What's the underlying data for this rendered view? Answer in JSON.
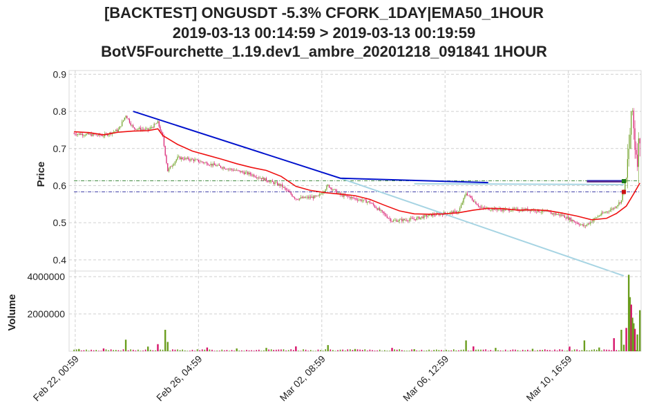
{
  "header": {
    "title_line1": "[BACKTEST] ONGUSDT -5.3% CFORK_1DAY|EMA50_1HOUR",
    "title_line2": "2019-03-13 00:14:59 > 2019-03-13 00:19:59",
    "title_line3": "BotV5Fourchette_1.19.dev1_ambre_20201218_091841 1HOUR"
  },
  "chart_data": [
    {
      "type": "candlestick",
      "ylabel": "Price",
      "xlabel": "",
      "x_range": [
        "2019-02-21 20:00",
        "2019-03-13 04:00"
      ],
      "ylim": [
        0.37,
        0.91
      ],
      "y_ticks": [
        "0.4",
        "0.5",
        "0.6",
        "0.7",
        "0.8",
        "0.9"
      ],
      "grid": true,
      "colors": {
        "up": "#6b9e1f",
        "down": "#d6136a",
        "ema": "#ee1111",
        "fork": "#0011cc",
        "fork_low": "#a6d4e3",
        "entry": "#006400",
        "stop": "#00008b",
        "trade": "#5a2a8a"
      },
      "ema_points": [
        [
          "2019-02-22 00:00",
          0.745
        ],
        [
          "2019-02-22 12:00",
          0.743
        ],
        [
          "2019-02-23 00:00",
          0.737
        ],
        [
          "2019-02-23 12:00",
          0.744
        ],
        [
          "2019-02-24 00:00",
          0.747
        ],
        [
          "2019-02-24 12:00",
          0.748
        ],
        [
          "2019-02-24 20:00",
          0.753
        ],
        [
          "2019-02-25 00:00",
          0.735
        ],
        [
          "2019-02-25 12:00",
          0.711
        ],
        [
          "2019-02-26 00:00",
          0.693
        ],
        [
          "2019-02-26 12:00",
          0.682
        ],
        [
          "2019-02-27 00:00",
          0.671
        ],
        [
          "2019-02-27 12:00",
          0.659
        ],
        [
          "2019-02-28 00:00",
          0.649
        ],
        [
          "2019-02-28 12:00",
          0.641
        ],
        [
          "2019-03-01 00:00",
          0.625
        ],
        [
          "2019-03-01 12:00",
          0.598
        ],
        [
          "2019-03-02 00:00",
          0.587
        ],
        [
          "2019-03-02 12:00",
          0.581
        ],
        [
          "2019-03-03 00:00",
          0.577
        ],
        [
          "2019-03-03 12:00",
          0.573
        ],
        [
          "2019-03-04 00:00",
          0.563
        ],
        [
          "2019-03-04 12:00",
          0.547
        ],
        [
          "2019-03-05 00:00",
          0.532
        ],
        [
          "2019-03-05 12:00",
          0.524
        ],
        [
          "2019-03-06 00:00",
          0.523
        ],
        [
          "2019-03-06 12:00",
          0.524
        ],
        [
          "2019-03-07 00:00",
          0.527
        ],
        [
          "2019-03-07 12:00",
          0.534
        ],
        [
          "2019-03-08 00:00",
          0.539
        ],
        [
          "2019-03-08 12:00",
          0.538
        ],
        [
          "2019-03-09 00:00",
          0.534
        ],
        [
          "2019-03-09 12:00",
          0.535
        ],
        [
          "2019-03-10 00:00",
          0.533
        ],
        [
          "2019-03-10 12:00",
          0.526
        ],
        [
          "2019-03-11 00:00",
          0.518
        ],
        [
          "2019-03-11 12:00",
          0.508
        ],
        [
          "2019-03-12 00:00",
          0.512
        ],
        [
          "2019-03-12 08:00",
          0.525
        ],
        [
          "2019-03-12 16:00",
          0.545
        ],
        [
          "2019-03-12 22:00",
          0.578
        ],
        [
          "2019-03-13 03:00",
          0.607
        ]
      ],
      "fork_line": [
        [
          "2019-02-24 00:00",
          0.8
        ],
        [
          "2019-03-03 00:00",
          0.62
        ],
        [
          "2019-03-08 00:00",
          0.608
        ]
      ],
      "fork_line_2": [
        [
          "2019-03-11 08:00",
          0.613
        ],
        [
          "2019-03-12 14:00",
          0.613
        ]
      ],
      "fork_low_line": [
        [
          "2019-03-03 00:00",
          0.62
        ],
        [
          "2019-03-12 14:00",
          0.357
        ]
      ],
      "fork_low_flat": [
        [
          "2019-03-05 12:00",
          0.605
        ],
        [
          "2019-03-12 14:00",
          0.603
        ]
      ],
      "trade_line": [
        [
          "2019-03-11 08:00",
          0.611
        ],
        [
          "2019-03-12 14:00",
          0.611
        ]
      ],
      "entry_level": 0.613,
      "stop_level": 0.583,
      "markers": [
        {
          "type": "buy",
          "x": "2019-03-12 14:00",
          "y": 0.612
        },
        {
          "type": "sell",
          "x": "2019-03-12 14:00",
          "y": 0.583
        }
      ],
      "price_path": [
        [
          "2019-02-22 00:00",
          0.74
        ],
        [
          "2019-02-23 00:00",
          0.735
        ],
        [
          "2019-02-23 12:00",
          0.75
        ],
        [
          "2019-02-23 18:00",
          0.79
        ],
        [
          "2019-02-24 00:00",
          0.755
        ],
        [
          "2019-02-24 12:00",
          0.75
        ],
        [
          "2019-02-24 20:00",
          0.77
        ],
        [
          "2019-02-25 00:00",
          0.73
        ],
        [
          "2019-02-25 04:00",
          0.64
        ],
        [
          "2019-02-25 12:00",
          0.675
        ],
        [
          "2019-02-26 00:00",
          0.67
        ],
        [
          "2019-02-27 00:00",
          0.65
        ],
        [
          "2019-02-28 00:00",
          0.63
        ],
        [
          "2019-03-01 00:00",
          0.6
        ],
        [
          "2019-03-01 12:00",
          0.565
        ],
        [
          "2019-03-02 06:00",
          0.57
        ],
        [
          "2019-03-02 14:00",
          0.6
        ],
        [
          "2019-03-03 00:00",
          0.575
        ],
        [
          "2019-03-04 00:00",
          0.555
        ],
        [
          "2019-03-04 18:00",
          0.505
        ],
        [
          "2019-03-05 12:00",
          0.51
        ],
        [
          "2019-03-06 00:00",
          0.52
        ],
        [
          "2019-03-07 00:00",
          0.53
        ],
        [
          "2019-03-07 06:00",
          0.58
        ],
        [
          "2019-03-07 18:00",
          0.54
        ],
        [
          "2019-03-08 12:00",
          0.535
        ],
        [
          "2019-03-09 12:00",
          0.535
        ],
        [
          "2019-03-10 12:00",
          0.52
        ],
        [
          "2019-03-11 06:00",
          0.49
        ],
        [
          "2019-03-11 18:00",
          0.52
        ],
        [
          "2019-03-12 06:00",
          0.54
        ],
        [
          "2019-03-12 12:00",
          0.56
        ],
        [
          "2019-03-12 16:00",
          0.62
        ],
        [
          "2019-03-12 19:00",
          0.74
        ],
        [
          "2019-03-12 21:00",
          0.8
        ],
        [
          "2019-03-12 23:00",
          0.71
        ],
        [
          "2019-03-13 01:00",
          0.68
        ],
        [
          "2019-03-13 03:00",
          0.74
        ]
      ]
    },
    {
      "type": "bar",
      "ylabel": "Volume",
      "ylim": [
        0,
        4300000
      ],
      "y_ticks": [
        "2000000",
        "4000000"
      ],
      "grid": true,
      "spikes": [
        [
          "2019-02-22 04:00",
          120000
        ],
        [
          "2019-02-23 00:00",
          150000
        ],
        [
          "2019-02-23 18:00",
          620000
        ],
        [
          "2019-02-24 12:00",
          250000
        ],
        [
          "2019-02-24 20:00",
          380000
        ],
        [
          "2019-02-25 02:00",
          1150000
        ],
        [
          "2019-02-25 04:00",
          500000
        ],
        [
          "2019-02-26 12:00",
          200000
        ],
        [
          "2019-02-27 12:00",
          150000
        ],
        [
          "2019-02-28 12:00",
          180000
        ],
        [
          "2019-03-01 12:00",
          260000
        ],
        [
          "2019-03-02 14:00",
          330000
        ],
        [
          "2019-03-03 12:00",
          120000
        ],
        [
          "2019-03-04 18:00",
          180000
        ],
        [
          "2019-03-05 12:00",
          110000
        ],
        [
          "2019-03-07 06:00",
          580000
        ],
        [
          "2019-03-07 12:00",
          260000
        ],
        [
          "2019-03-08 06:00",
          180000
        ],
        [
          "2019-03-09 12:00",
          130000
        ],
        [
          "2019-03-10 18:00",
          250000
        ],
        [
          "2019-03-11 06:00",
          580000
        ],
        [
          "2019-03-11 18:00",
          200000
        ],
        [
          "2019-03-12 06:00",
          700000
        ],
        [
          "2019-03-12 12:00",
          1150000
        ],
        [
          "2019-03-12 14:00",
          350000
        ],
        [
          "2019-03-12 16:00",
          1250000
        ],
        [
          "2019-03-12 18:00",
          4100000
        ],
        [
          "2019-03-12 19:00",
          2900000
        ],
        [
          "2019-03-12 20:00",
          2500000
        ],
        [
          "2019-03-12 21:00",
          1800000
        ],
        [
          "2019-03-12 22:00",
          1500000
        ],
        [
          "2019-03-12 23:00",
          1200000
        ],
        [
          "2019-03-13 01:00",
          900000
        ],
        [
          "2019-03-13 03:00",
          2200000
        ]
      ]
    }
  ],
  "x_ticks": [
    {
      "label": "Feb 22, 00:59",
      "x": "2019-02-22 00:59"
    },
    {
      "label": "Feb 26, 04:59",
      "x": "2019-02-26 04:59"
    },
    {
      "label": "Mar 02, 08:59",
      "x": "2019-03-02 08:59"
    },
    {
      "label": "Mar 06, 12:59",
      "x": "2019-03-06 12:59"
    },
    {
      "label": "Mar 10, 16:59",
      "x": "2019-03-10 16:59"
    }
  ]
}
